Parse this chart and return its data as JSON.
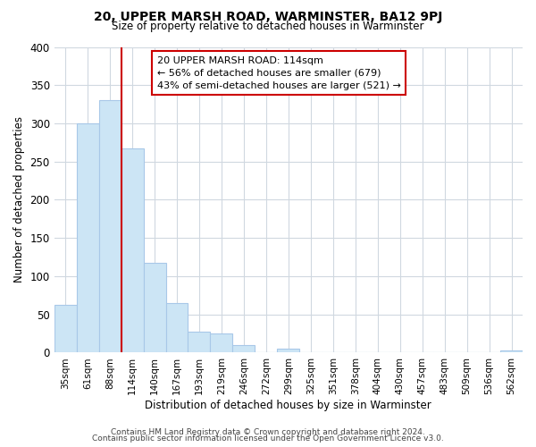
{
  "title": "20, UPPER MARSH ROAD, WARMINSTER, BA12 9PJ",
  "subtitle": "Size of property relative to detached houses in Warminster",
  "xlabel": "Distribution of detached houses by size in Warminster",
  "ylabel": "Number of detached properties",
  "bar_labels": [
    "35sqm",
    "61sqm",
    "88sqm",
    "114sqm",
    "140sqm",
    "167sqm",
    "193sqm",
    "219sqm",
    "246sqm",
    "272sqm",
    "299sqm",
    "325sqm",
    "351sqm",
    "378sqm",
    "404sqm",
    "430sqm",
    "457sqm",
    "483sqm",
    "509sqm",
    "536sqm",
    "562sqm"
  ],
  "bar_heights": [
    63,
    300,
    330,
    267,
    117,
    65,
    28,
    25,
    10,
    0,
    5,
    0,
    0,
    0,
    0,
    0,
    0,
    0,
    0,
    0,
    3
  ],
  "bar_color": "#cce5f5",
  "bar_edge_color": "#a8c8e8",
  "vline_x_index": 3,
  "vline_color": "#cc0000",
  "annotation_title": "20 UPPER MARSH ROAD: 114sqm",
  "annotation_line1": "← 56% of detached houses are smaller (679)",
  "annotation_line2": "43% of semi-detached houses are larger (521) →",
  "annotation_box_color": "#ffffff",
  "annotation_box_edge": "#cc0000",
  "ylim": [
    0,
    400
  ],
  "yticks": [
    0,
    50,
    100,
    150,
    200,
    250,
    300,
    350,
    400
  ],
  "footer1": "Contains HM Land Registry data © Crown copyright and database right 2024.",
  "footer2": "Contains public sector information licensed under the Open Government Licence v3.0.",
  "background_color": "#ffffff",
  "grid_color": "#d0d8e0"
}
